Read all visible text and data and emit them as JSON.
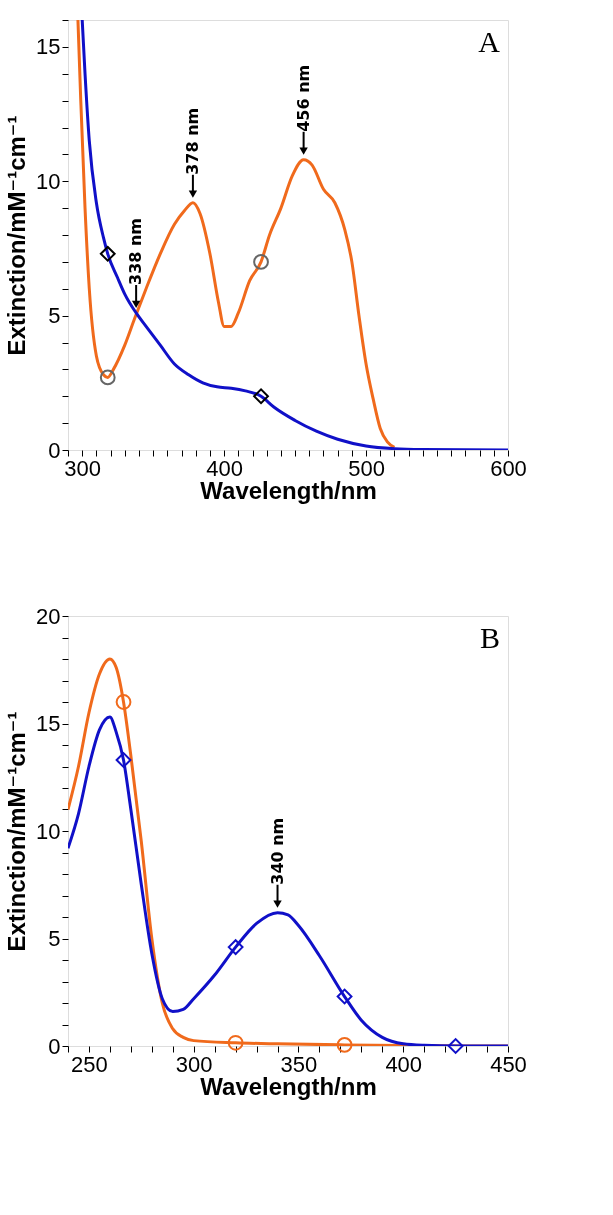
{
  "chart_data": [
    {
      "type": "line",
      "xlabel": "Wavelength/nm",
      "ylabel": "Extinction/mM⁻¹cm⁻¹",
      "xlim": [
        290,
        600
      ],
      "ylim": [
        0,
        16
      ],
      "xticks": [
        {
          "value": 290,
          "label": null
        },
        300,
        {
          "value": 310,
          "label": null
        },
        {
          "value": 320,
          "label": null
        },
        {
          "value": 330,
          "label": null
        },
        {
          "value": 340,
          "label": null
        },
        {
          "value": 350,
          "label": null
        },
        {
          "value": 360,
          "label": null
        },
        {
          "value": 370,
          "label": null
        },
        {
          "value": 380,
          "label": null
        },
        {
          "value": 390,
          "label": null
        },
        400,
        {
          "value": 410,
          "label": null
        },
        {
          "value": 420,
          "label": null
        },
        {
          "value": 430,
          "label": null
        },
        {
          "value": 440,
          "label": null
        },
        {
          "value": 450,
          "label": null
        },
        {
          "value": 460,
          "label": null
        },
        {
          "value": 470,
          "label": null
        },
        {
          "value": 480,
          "label": null
        },
        {
          "value": 490,
          "label": null
        },
        500,
        {
          "value": 510,
          "label": null
        },
        {
          "value": 520,
          "label": null
        },
        {
          "value": 530,
          "label": null
        },
        {
          "value": 540,
          "label": null
        },
        {
          "value": 550,
          "label": null
        },
        {
          "value": 560,
          "label": null
        },
        {
          "value": 570,
          "label": null
        },
        {
          "value": 580,
          "label": null
        },
        {
          "value": 590,
          "label": null
        },
        600
      ],
      "yticks": [
        0,
        {
          "value": 1,
          "label": null
        },
        {
          "value": 2,
          "label": null
        },
        {
          "value": 3,
          "label": null
        },
        {
          "value": 4,
          "label": null
        },
        5,
        {
          "value": 6,
          "label": null
        },
        {
          "value": 7,
          "label": null
        },
        {
          "value": 8,
          "label": null
        },
        {
          "value": 9,
          "label": null
        },
        10,
        {
          "value": 11,
          "label": null
        },
        {
          "value": 12,
          "label": null
        },
        {
          "value": 13,
          "label": null
        },
        {
          "value": 14,
          "label": null
        },
        15,
        {
          "value": 16,
          "label": null
        }
      ],
      "grid": false,
      "line_style": "solid",
      "series": [
        {
          "color": "#f06a1c",
          "x": [
            297,
            299,
            302,
            305,
            310,
            315,
            318,
            322,
            330,
            337,
            345,
            355,
            365,
            372,
            378,
            383,
            390,
            396,
            400,
            405,
            410,
            418,
            426,
            432,
            440,
            448,
            456,
            462,
            470,
            478,
            485,
            490,
            495,
            500,
            505,
            510,
            515,
            520
          ],
          "values": [
            16,
            13,
            9,
            6,
            3.5,
            2.8,
            2.7,
            3.0,
            3.9,
            4.9,
            6.0,
            7.3,
            8.4,
            8.9,
            9.2,
            8.8,
            7.3,
            5.5,
            4.6,
            4.6,
            5.1,
            6.3,
            7.0,
            8.0,
            9.0,
            10.2,
            10.8,
            10.6,
            9.7,
            9.2,
            8.2,
            7.0,
            5.0,
            3.2,
            1.9,
            0.8,
            0.3,
            0.1
          ]
        },
        {
          "color": "#1010c8",
          "x": [
            300,
            302,
            305,
            310,
            315,
            318,
            325,
            330,
            338,
            345,
            355,
            365,
            375,
            385,
            395,
            405,
            415,
            426,
            435,
            450,
            465,
            480,
            500,
            520,
            540,
            600
          ],
          "values": [
            16,
            14,
            11.5,
            9.2,
            7.9,
            7.3,
            6.4,
            5.8,
            5.1,
            4.6,
            3.9,
            3.2,
            2.8,
            2.5,
            2.35,
            2.3,
            2.2,
            2.0,
            1.6,
            1.1,
            0.7,
            0.4,
            0.15,
            0.05,
            0.02,
            0
          ]
        },
        {
          "type": "scatter",
          "marker": "circle",
          "color": "#666666",
          "x": [
            318,
            426
          ],
          "values": [
            2.7,
            7.0
          ]
        },
        {
          "type": "scatter",
          "marker": "diamond",
          "color": "#000000",
          "x": [
            318,
            426
          ],
          "values": [
            7.3,
            2.0
          ]
        }
      ],
      "annotations": [
        "A",
        {
          "text": "338 nm",
          "x": 338,
          "y": 5.1
        },
        {
          "text": "378 nm",
          "x": 378,
          "y": 9.2
        },
        {
          "text": "456 nm",
          "x": 456,
          "y": 10.8
        }
      ]
    },
    {
      "type": "line",
      "xlabel": "Wavelength/nm",
      "ylabel": "Extinction/mM⁻¹cm⁻¹",
      "xlim": [
        240,
        450
      ],
      "ylim": [
        0,
        20
      ],
      "xticks": [
        {
          "value": 240,
          "label": null
        },
        250,
        {
          "value": 260,
          "label": null
        },
        {
          "value": 270,
          "label": null
        },
        {
          "value": 280,
          "label": null
        },
        {
          "value": 290,
          "label": null
        },
        300,
        {
          "value": 310,
          "label": null
        },
        {
          "value": 320,
          "label": null
        },
        {
          "value": 330,
          "label": null
        },
        {
          "value": 340,
          "label": null
        },
        350,
        {
          "value": 360,
          "label": null
        },
        {
          "value": 370,
          "label": null
        },
        {
          "value": 380,
          "label": null
        },
        {
          "value": 390,
          "label": null
        },
        400,
        {
          "value": 410,
          "label": null
        },
        {
          "value": 420,
          "label": null
        },
        {
          "value": 430,
          "label": null
        },
        {
          "value": 440,
          "label": null
        },
        450
      ],
      "yticks": [
        0,
        {
          "value": 1,
          "label": null
        },
        {
          "value": 2,
          "label": null
        },
        {
          "value": 3,
          "label": null
        },
        {
          "value": 4,
          "label": null
        },
        5,
        {
          "value": 6,
          "label": null
        },
        {
          "value": 7,
          "label": null
        },
        {
          "value": 8,
          "label": null
        },
        {
          "value": 9,
          "label": null
        },
        10,
        {
          "value": 11,
          "label": null
        },
        {
          "value": 12,
          "label": null
        },
        {
          "value": 13,
          "label": null
        },
        {
          "value": 14,
          "label": null
        },
        15,
        {
          "value": 16,
          "label": null
        },
        {
          "value": 17,
          "label": null
        },
        {
          "value": 18,
          "label": null
        },
        {
          "value": 19,
          "label": null
        },
        20
      ],
      "grid": false,
      "line_style": "solid",
      "series": [
        {
          "color": "#f06a1c",
          "x": [
            240,
            245,
            250,
            255,
            260,
            263,
            266.5,
            270,
            275,
            280,
            285,
            290,
            295,
            300,
            320,
            340,
            372,
            400,
            450
          ],
          "values": [
            11.0,
            13.0,
            15.5,
            17.3,
            18.0,
            17.6,
            16.0,
            13.5,
            9.5,
            5.0,
            2.0,
            0.8,
            0.4,
            0.25,
            0.15,
            0.1,
            0.05,
            0.02,
            0
          ]
        },
        {
          "color": "#1010c8",
          "x": [
            240,
            245,
            250,
            255,
            260,
            263,
            266.5,
            270,
            275,
            280,
            285,
            290,
            295,
            300,
            310,
            320,
            330,
            340,
            345,
            350,
            360,
            372,
            380,
            390,
            400,
            410,
            425,
            450
          ],
          "values": [
            9.2,
            10.8,
            13.0,
            14.7,
            15.3,
            14.6,
            13.3,
            11.0,
            7.5,
            4.3,
            2.2,
            1.6,
            1.7,
            2.2,
            3.3,
            4.6,
            5.7,
            6.2,
            6.1,
            5.6,
            4.2,
            2.3,
            1.2,
            0.4,
            0.1,
            0.03,
            0,
            0
          ]
        },
        {
          "type": "scatter",
          "marker": "circle",
          "color": "#f06a1c",
          "x": [
            266.5,
            320,
            372
          ],
          "values": [
            16.0,
            0.15,
            0.05
          ]
        },
        {
          "type": "scatter",
          "marker": "diamond",
          "color": "#1010c8",
          "x": [
            266.5,
            320,
            372,
            425
          ],
          "values": [
            13.3,
            4.6,
            2.3,
            0
          ]
        }
      ],
      "annotations": [
        "B",
        {
          "text": "340 nm",
          "x": 340,
          "y": 6.2
        }
      ]
    }
  ]
}
